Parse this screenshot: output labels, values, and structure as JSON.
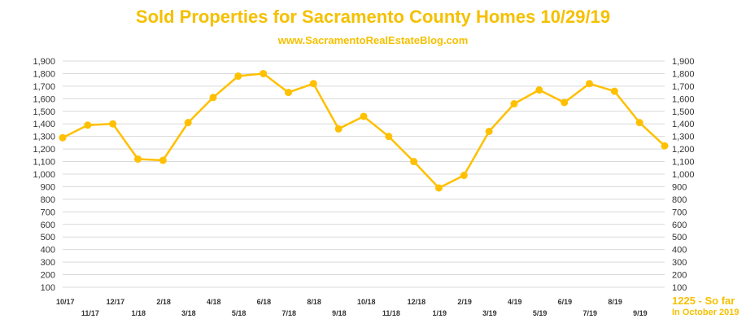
{
  "colors": {
    "accent": "#F5C000",
    "series": "#FFC000"
  },
  "chart_data": {
    "type": "line",
    "title": "Sold Properties for Sacramento County Homes 10/29/19",
    "subtitle": "www.SacramentoRealEstateBlog.com",
    "x": [
      "10/17",
      "11/17",
      "12/17",
      "1/18",
      "2/18",
      "3/18",
      "4/18",
      "5/18",
      "6/18",
      "7/18",
      "8/18",
      "9/18",
      "10/18",
      "11/18",
      "12/18",
      "1/19",
      "2/19",
      "3/19",
      "4/19",
      "5/19",
      "6/19",
      "7/19",
      "8/19",
      "9/19",
      "10/19"
    ],
    "x_tick_labels": [
      "10/17",
      "11/17",
      "12/17",
      "1/18",
      "2/18",
      "3/18",
      "4/18",
      "5/18",
      "6/18",
      "7/18",
      "8/18",
      "9/18",
      "10/18",
      "11/18",
      "12/18",
      "1/19",
      "2/19",
      "3/19",
      "4/19",
      "5/19",
      "6/19",
      "7/19",
      "8/19",
      "9/19",
      ""
    ],
    "series": [
      {
        "values": [
          1290,
          1390,
          1400,
          1120,
          1110,
          1410,
          1610,
          1780,
          1800,
          1650,
          1720,
          1360,
          1460,
          1300,
          1100,
          890,
          990,
          1340,
          1560,
          1670,
          1570,
          1720,
          1660,
          1410,
          1225
        ]
      }
    ],
    "ylim": [
      100,
      1900
    ],
    "yticks": [
      "100",
      "200",
      "300",
      "400",
      "500",
      "600",
      "700",
      "800",
      "900",
      "1,000",
      "1,100",
      "1,200",
      "1,300",
      "1,400",
      "1,500",
      "1,600",
      "1,700",
      "1,800",
      "1,900"
    ],
    "grid": true,
    "legend": "none",
    "annotation": {
      "value": "1225",
      "text": " - So far",
      "line2": "In October 2019"
    }
  }
}
